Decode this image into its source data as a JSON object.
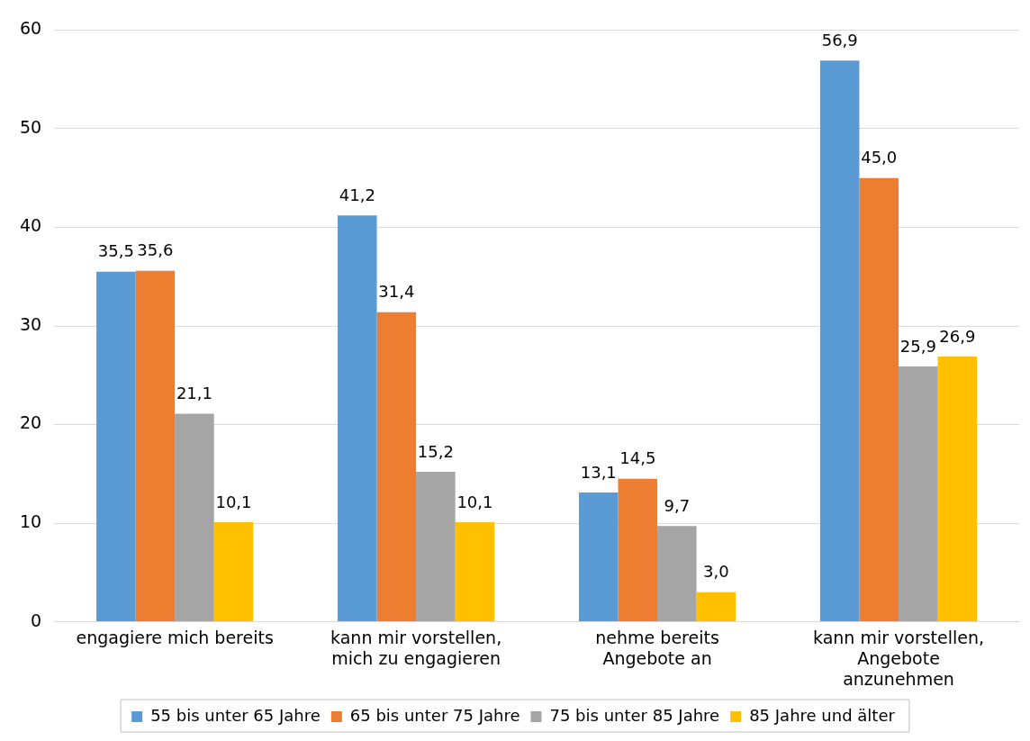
{
  "chart_data": {
    "type": "bar",
    "categories": [
      "engagiere mich bereits",
      "kann mir vorstellen,\nmich zu engagieren",
      "nehme bereits\nAngebote an",
      "kann mir vorstellen,\nAngebote\nanzunehmen"
    ],
    "series": [
      {
        "name": "55 bis unter 65 Jahre",
        "color": "#5b9bd5",
        "values": [
          35.5,
          41.2,
          13.1,
          56.9
        ],
        "value_labels": [
          "35,5",
          "41,2",
          "13,1",
          "56,9"
        ]
      },
      {
        "name": "65 bis unter 75 Jahre",
        "color": "#ed7d31",
        "values": [
          35.6,
          31.4,
          14.5,
          45.0
        ],
        "value_labels": [
          "35,6",
          "31,4",
          "14,5",
          "45,0"
        ]
      },
      {
        "name": "75 bis unter 85 Jahre",
        "color": "#a5a5a5",
        "values": [
          21.1,
          15.2,
          9.7,
          25.9
        ],
        "value_labels": [
          "21,1",
          "15,2",
          "9,7",
          "25,9"
        ]
      },
      {
        "name": "85 Jahre und älter",
        "color": "#ffc000",
        "values": [
          10.1,
          10.1,
          3.0,
          26.9
        ],
        "value_labels": [
          "10,1",
          "10,1",
          "3,0",
          "26,9"
        ]
      }
    ],
    "ylim": [
      0,
      60
    ],
    "yticks": [
      0,
      10,
      20,
      30,
      40,
      50,
      60
    ],
    "grid": "y",
    "legend": "bottom"
  }
}
